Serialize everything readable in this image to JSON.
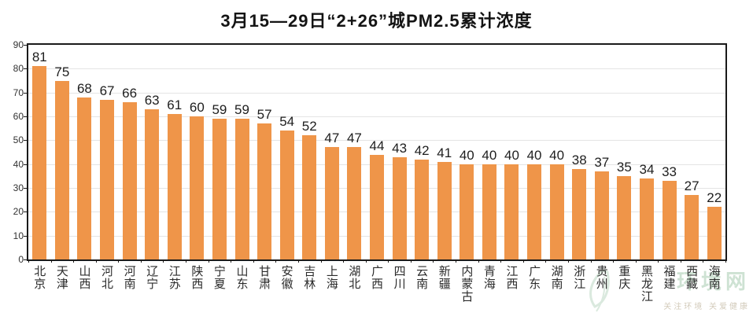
{
  "title": "3月15—29日“2+26”城PM2.5累计浓度",
  "chart_data": {
    "type": "bar",
    "title": "3月15—29日“2+26”城PM2.5累计浓度",
    "categories": [
      "北京",
      "天津",
      "山西",
      "河北",
      "河南",
      "辽宁",
      "江苏",
      "陕西",
      "宁夏",
      "山东",
      "甘肃",
      "安徽",
      "吉林",
      "上海",
      "湖北",
      "广西",
      "四川",
      "云南",
      "新疆",
      "内蒙古",
      "青海",
      "江西",
      "广东",
      "湖南",
      "浙江",
      "贵州",
      "重庆",
      "黑龙江",
      "福建",
      "西藏",
      "海南"
    ],
    "values": [
      81,
      75,
      68,
      67,
      66,
      63,
      61,
      60,
      59,
      59,
      57,
      54,
      52,
      47,
      47,
      44,
      43,
      42,
      41,
      40,
      40,
      40,
      40,
      40,
      38,
      37,
      35,
      34,
      33,
      27,
      22
    ],
    "xlabel": "",
    "ylabel": "",
    "ylim": [
      0,
      90
    ],
    "yticks": [
      0,
      10,
      20,
      30,
      40,
      50,
      60,
      70,
      80,
      90
    ],
    "grid": true,
    "legend": "none",
    "bar_color": "#EF9549",
    "value_labels": true
  },
  "colors": {
    "bar": "#EF9549",
    "gridline": "#e4e4e4",
    "frame": "#1a1a1a",
    "title_text": "#141414",
    "axis_text": "#333333",
    "watermark_green": "#c2dcc9"
  },
  "watermark": {
    "logo_text": "环境网",
    "tagline": "关注环境 关爱健康"
  }
}
